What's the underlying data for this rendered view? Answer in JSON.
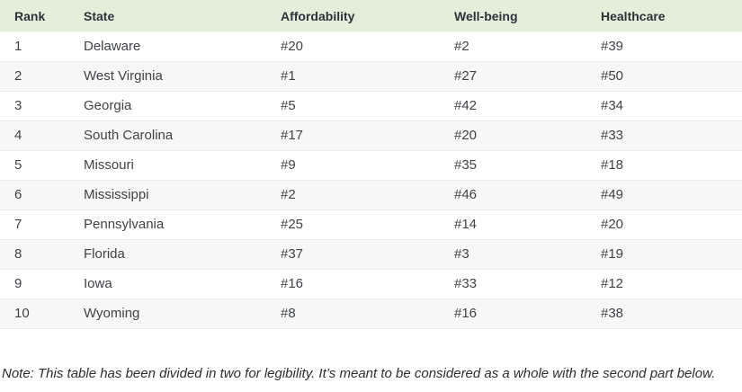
{
  "chart_data": {
    "type": "table",
    "title": "",
    "columns": [
      "Rank",
      "State",
      "Affordability",
      "Well-being",
      "Healthcare"
    ],
    "rows": [
      {
        "rank": "1",
        "state": "Delaware",
        "affordability": "#20",
        "wellbeing": "#2",
        "healthcare": "#39"
      },
      {
        "rank": "2",
        "state": "West Virginia",
        "affordability": "#1",
        "wellbeing": "#27",
        "healthcare": "#50"
      },
      {
        "rank": "3",
        "state": "Georgia",
        "affordability": "#5",
        "wellbeing": "#42",
        "healthcare": "#34"
      },
      {
        "rank": "4",
        "state": "South Carolina",
        "affordability": "#17",
        "wellbeing": "#20",
        "healthcare": "#33"
      },
      {
        "rank": "5",
        "state": "Missouri",
        "affordability": "#9",
        "wellbeing": "#35",
        "healthcare": "#18"
      },
      {
        "rank": "6",
        "state": "Mississippi",
        "affordability": "#2",
        "wellbeing": "#46",
        "healthcare": "#49"
      },
      {
        "rank": "7",
        "state": "Pennsylvania",
        "affordability": "#25",
        "wellbeing": "#14",
        "healthcare": "#20"
      },
      {
        "rank": "8",
        "state": "Florida",
        "affordability": "#37",
        "wellbeing": "#3",
        "healthcare": "#19"
      },
      {
        "rank": "9",
        "state": "Iowa",
        "affordability": "#16",
        "wellbeing": "#33",
        "healthcare": "#12"
      },
      {
        "rank": "10",
        "state": "Wyoming",
        "affordability": "#8",
        "wellbeing": "#16",
        "healthcare": "#38"
      }
    ]
  },
  "header": {
    "rank": "Rank",
    "state": "State",
    "affordability": "Affordability",
    "wellbeing": "Well-being",
    "healthcare": "Healthcare"
  },
  "note": "Note: This table has been divided in two for legibility. It’s meant to be considered as a whole with the second part below.",
  "colors": {
    "header_bg": "#e4eedb",
    "row_alt_bg": "#f7f7f7",
    "row_border": "#e9e9e9",
    "body_text": "#3f4347",
    "header_text": "#2c3338"
  }
}
